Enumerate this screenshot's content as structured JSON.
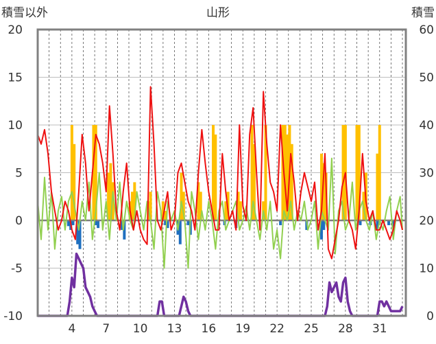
{
  "chart_data": {
    "type": "line",
    "title": "山形",
    "left_axis_label": "積雪以外",
    "right_axis_label": "積雪",
    "ylim_left": [
      -10,
      20
    ],
    "ylim_right": [
      0,
      60
    ],
    "yticks_left": [
      20,
      15,
      10,
      5,
      0,
      -5,
      -10
    ],
    "yticks_right": [
      60,
      50,
      40,
      30,
      20,
      10,
      0
    ],
    "x_range": [
      1,
      33.3
    ],
    "x_ticks": [
      4,
      7,
      10,
      13,
      16,
      19,
      22,
      25,
      28,
      31
    ],
    "x_tick_labels": [
      "4",
      "7",
      "10",
      "13",
      "16",
      "19",
      "22",
      "25",
      "28",
      "31"
    ],
    "vertical_grid_days": [
      2,
      3,
      4,
      5,
      6,
      7,
      8,
      9,
      10,
      11,
      12,
      13,
      14,
      15,
      16,
      17,
      18,
      19,
      20,
      21,
      22,
      23,
      24,
      25,
      26,
      27,
      28,
      29,
      30,
      31,
      32,
      33
    ],
    "grid": true,
    "colors": {
      "red": "#ee1111",
      "green": "#92d050",
      "orange": "#ffc000",
      "blue": "#1f6fbf",
      "purple": "#7030a0",
      "zero_line": "#7f7f7f",
      "frame": "#808080",
      "grid": "#bdbdbd"
    },
    "series": [
      {
        "color": "red",
        "axis": "left",
        "x": [
          1.0,
          1.3,
          1.6,
          1.9,
          2.2,
          2.5,
          2.8,
          3.1,
          3.4,
          3.7,
          4.0,
          4.3,
          4.6,
          4.9,
          5.2,
          5.5,
          5.8,
          6.1,
          6.4,
          6.7,
          7.0,
          7.3,
          7.6,
          7.9,
          8.2,
          8.5,
          8.8,
          9.1,
          9.4,
          9.7,
          10.0,
          10.3,
          10.6,
          10.9,
          11.2,
          11.5,
          11.8,
          12.1,
          12.4,
          12.7,
          13.0,
          13.3,
          13.6,
          13.9,
          14.2,
          14.5,
          14.8,
          15.1,
          15.4,
          15.7,
          16.0,
          16.3,
          16.6,
          16.9,
          17.2,
          17.5,
          17.8,
          18.1,
          18.4,
          18.7,
          19.0,
          19.3,
          19.6,
          19.9,
          20.2,
          20.5,
          20.8,
          21.1,
          21.4,
          21.7,
          22.0,
          22.3,
          22.6,
          22.9,
          23.2,
          23.5,
          23.8,
          24.1,
          24.4,
          24.7,
          25.0,
          25.3,
          25.6,
          25.9,
          26.2,
          26.5,
          26.8,
          27.1,
          27.4,
          27.7,
          28.0,
          28.3,
          28.6,
          28.9,
          29.2,
          29.5,
          29.8,
          30.1,
          30.4,
          30.7,
          31.0,
          31.3,
          31.6,
          31.9,
          32.2,
          32.5,
          32.8,
          33.0
        ],
        "values": [
          9.0,
          8.0,
          9.5,
          7.0,
          3.0,
          1.0,
          -1.0,
          0.0,
          2.0,
          1.0,
          -1.0,
          -2.0,
          3.0,
          9.0,
          6.0,
          1.0,
          5.0,
          9.0,
          8.0,
          6.0,
          3.0,
          12.0,
          7.0,
          1.0,
          -1.0,
          3.0,
          6.0,
          1.0,
          -1.0,
          1.0,
          -1.0,
          -2.0,
          -2.5,
          14.0,
          8.0,
          0.0,
          -1.0,
          1.0,
          3.0,
          -1.0,
          0.0,
          5.0,
          6.0,
          4.0,
          2.0,
          1.0,
          -1.0,
          5.0,
          9.5,
          6.0,
          3.0,
          1.0,
          -1.0,
          -1.0,
          7.0,
          3.0,
          0.0,
          1.0,
          -1.0,
          10.0,
          1.5,
          0.0,
          9.0,
          11.8,
          5.0,
          -1.0,
          13.5,
          8.0,
          4.0,
          3.0,
          1.0,
          10.0,
          5.0,
          1.0,
          7.0,
          4.0,
          0.0,
          3.0,
          5.0,
          3.5,
          2.0,
          4.0,
          -1.0,
          1.0,
          7.0,
          -3.0,
          -4.0,
          -2.0,
          0.0,
          3.5,
          5.0,
          0.0,
          -1.0,
          -3.0,
          1.0,
          7.0,
          2.0,
          0.0,
          1.0,
          -1.0,
          -1.0,
          0.0,
          -1.0,
          -2.0,
          -1.0,
          1.0,
          0.0,
          -1.0
        ]
      },
      {
        "color": "green",
        "axis": "left",
        "x": [
          1.0,
          1.3,
          1.6,
          1.9,
          2.2,
          2.5,
          2.8,
          3.1,
          3.4,
          3.7,
          4.0,
          4.3,
          4.6,
          4.9,
          5.2,
          5.5,
          5.8,
          6.1,
          6.4,
          6.7,
          7.0,
          7.3,
          7.6,
          7.9,
          8.2,
          8.5,
          8.8,
          9.1,
          9.4,
          9.7,
          10.0,
          10.3,
          10.6,
          10.9,
          11.2,
          11.5,
          11.8,
          12.1,
          12.4,
          12.7,
          13.0,
          13.3,
          13.6,
          13.9,
          14.2,
          14.5,
          14.8,
          15.1,
          15.4,
          15.7,
          16.0,
          16.3,
          16.6,
          16.9,
          17.2,
          17.5,
          17.8,
          18.1,
          18.4,
          18.7,
          19.0,
          19.3,
          19.6,
          19.9,
          20.2,
          20.5,
          20.8,
          21.1,
          21.4,
          21.7,
          22.0,
          22.3,
          22.6,
          22.9,
          23.2,
          23.5,
          23.8,
          24.1,
          24.4,
          24.7,
          25.0,
          25.3,
          25.6,
          25.9,
          26.2,
          26.5,
          26.8,
          27.1,
          27.4,
          27.7,
          28.0,
          28.3,
          28.6,
          28.9,
          29.2,
          29.5,
          29.8,
          30.1,
          30.4,
          30.7,
          31.0,
          31.3,
          31.6,
          31.9,
          32.2,
          32.5,
          32.8,
          33.0
        ],
        "values": [
          2.0,
          -2.0,
          4.5,
          -1.0,
          3.0,
          -3.0,
          1.0,
          2.5,
          -1.0,
          2.0,
          3.0,
          1.0,
          -1.0,
          2.0,
          0.0,
          4.0,
          -2.0,
          1.0,
          5.0,
          -1.0,
          2.0,
          -2.0,
          3.0,
          0.0,
          4.0,
          -1.0,
          2.0,
          0.0,
          -1.0,
          3.0,
          1.0,
          -1.0,
          2.0,
          0.0,
          -3.0,
          3.0,
          1.0,
          -5.0,
          2.0,
          0.0,
          1.0,
          -1.0,
          2.0,
          0.0,
          -5.0,
          3.0,
          1.0,
          -2.0,
          1.0,
          -1.0,
          2.0,
          0.0,
          -3.0,
          1.0,
          2.0,
          -1.0,
          0.0,
          1.0,
          2.0,
          -1.0,
          0.0,
          1.5,
          -1.0,
          2.0,
          0.0,
          -2.0,
          1.0,
          -1.0,
          2.0,
          -3.0,
          -1.0,
          -4.0,
          1.0,
          0.0,
          2.0,
          -1.0,
          1.0,
          0.0,
          2.0,
          -1.0,
          0.0,
          2.0,
          -3.0,
          1.0,
          0.0,
          -1.0,
          6.5,
          -3.5,
          1.0,
          2.0,
          -1.0,
          0.0,
          4.0,
          -1.0,
          1.0,
          2.0,
          0.0,
          -1.0,
          1.0,
          -2.0,
          0.0,
          -1.0,
          1.0,
          2.5,
          -2.0,
          1.0,
          2.5,
          -1.0
        ]
      },
      {
        "color": "purple",
        "axis": "right",
        "x": [
          1.0,
          3.6,
          3.8,
          4.0,
          4.2,
          4.4,
          4.6,
          4.8,
          5.0,
          5.2,
          5.4,
          5.6,
          5.8,
          6.0,
          6.2,
          11.5,
          11.7,
          11.9,
          12.1,
          12.3,
          13.4,
          13.6,
          13.8,
          14.0,
          14.2,
          14.4,
          26.2,
          26.4,
          26.6,
          26.8,
          27.0,
          27.2,
          27.4,
          27.6,
          27.8,
          28.0,
          28.2,
          28.4,
          28.6,
          30.8,
          31.0,
          31.2,
          31.4,
          31.6,
          31.8,
          32.0,
          32.4,
          32.8,
          33.0
        ],
        "values": [
          0,
          0,
          3,
          8,
          6,
          13,
          12,
          11,
          10,
          6,
          5,
          4,
          2,
          1,
          0,
          0,
          3,
          3,
          0,
          0,
          0,
          2,
          4,
          3,
          1,
          0,
          0,
          2,
          7,
          5,
          6,
          7,
          4,
          3,
          7,
          8,
          3,
          1,
          0,
          0,
          3,
          3,
          2,
          3,
          2,
          1,
          1,
          1,
          2
        ]
      }
    ],
    "bars": [
      {
        "color": "orange",
        "axis": "left",
        "x": [
          4.0,
          4.2,
          5.9,
          6.1,
          7.2,
          7.4,
          7.6,
          9.1,
          9.3,
          9.5,
          10.7,
          10.9,
          12.0,
          12.2,
          13.6,
          13.8,
          15.1,
          15.3,
          16.4,
          16.6,
          17.5,
          17.7,
          18.6,
          18.8,
          19.8,
          20.0,
          20.8,
          21.0,
          22.5,
          22.7,
          22.9,
          23.1,
          23.3,
          25.9,
          26.1,
          26.3,
          27.8,
          28.0,
          29.0,
          29.2,
          29.6,
          29.8,
          30.8,
          31.0
        ],
        "values": [
          10,
          8,
          10,
          10,
          5,
          6,
          4,
          2,
          3,
          4,
          2,
          3,
          2,
          1,
          5,
          3,
          4,
          3,
          10,
          9,
          2,
          3,
          3,
          2,
          10,
          8,
          2,
          10,
          10,
          10,
          9,
          10,
          8,
          7,
          6,
          5,
          10,
          10,
          10,
          10,
          3,
          5,
          7,
          10
        ]
      },
      {
        "color": "blue",
        "axis": "left",
        "x": [
          3.7,
          3.9,
          4.1,
          4.5,
          4.7,
          6.1,
          6.3,
          8.4,
          8.6,
          12.2,
          12.4,
          13.3,
          13.5,
          14.2,
          14.4,
          17.4,
          18.4,
          22.3,
          24.6,
          25.9,
          26.1,
          29.3,
          30.2,
          30.8,
          31.8,
          32.2
        ],
        "values": [
          -0.6,
          -1.0,
          -0.5,
          -2.5,
          -3.0,
          -0.5,
          -0.8,
          -1.0,
          -2.0,
          -0.5,
          -0.8,
          -1.5,
          -2.5,
          -0.5,
          -1.5,
          -0.5,
          -0.8,
          -0.5,
          -1.0,
          -2.0,
          -1.0,
          -0.5,
          -0.5,
          -1.0,
          -0.5,
          -0.8
        ]
      }
    ]
  }
}
